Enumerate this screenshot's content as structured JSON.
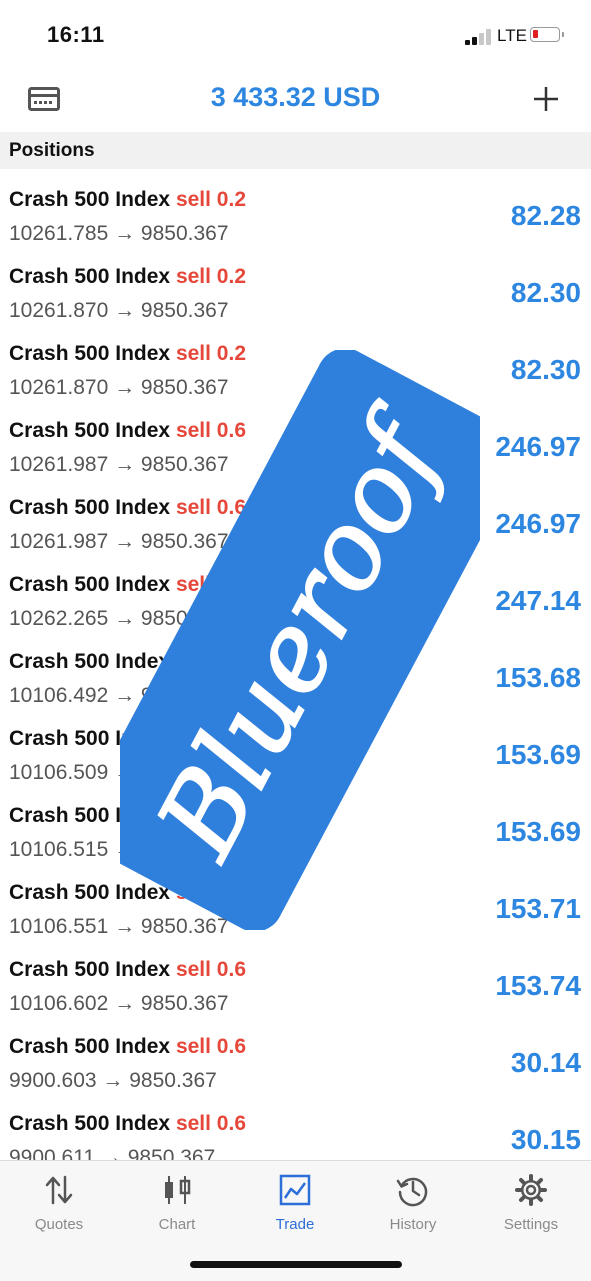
{
  "status_bar": {
    "time": "16:11",
    "network": "LTE"
  },
  "header": {
    "balance": "3 433.32 USD"
  },
  "positions": {
    "title": "Positions",
    "items": [
      {
        "symbol": "Crash 500 Index",
        "side": "sell 0.2",
        "prices": "10261.785 → 9850.367",
        "profit": "82.28"
      },
      {
        "symbol": "Crash 500 Index",
        "side": "sell 0.2",
        "prices": "10261.870 → 9850.367",
        "profit": "82.30"
      },
      {
        "symbol": "Crash 500 Index",
        "side": "sell 0.2",
        "prices": "10261.870 → 9850.367",
        "profit": "82.30"
      },
      {
        "symbol": "Crash 500 Index",
        "side": "sell 0.6",
        "prices": "10261.987 → 9850.367",
        "profit": "246.97"
      },
      {
        "symbol": "Crash 500 Index",
        "side": "sell 0.6",
        "prices": "10261.987 → 9850.367",
        "profit": "246.97"
      },
      {
        "symbol": "Crash 500 Index",
        "side": "sell 0.6",
        "prices": "10262.265 → 9850.367",
        "profit": "247.14"
      },
      {
        "symbol": "Crash 500 Index",
        "side": "sell 0.6",
        "prices": "10106.492 → 9850.367",
        "profit": "153.68"
      },
      {
        "symbol": "Crash 500 Index",
        "side": "sell 0.6",
        "prices": "10106.509 → 9850.367",
        "profit": "153.69"
      },
      {
        "symbol": "Crash 500 Index",
        "side": "sell 0.6",
        "prices": "10106.515 → 9850.367",
        "profit": "153.69"
      },
      {
        "symbol": "Crash 500 Index",
        "side": "sell 0.6",
        "prices": "10106.551 → 9850.367",
        "profit": "153.71"
      },
      {
        "symbol": "Crash 500 Index",
        "side": "sell 0.6",
        "prices": "10106.602 → 9850.367",
        "profit": "153.74"
      },
      {
        "symbol": "Crash 500 Index",
        "side": "sell 0.6",
        "prices": "9900.603 → 9850.367",
        "profit": "30.14"
      },
      {
        "symbol": "Crash 500 Index",
        "side": "sell 0.6",
        "prices": "9900.611 → 9850.367",
        "profit": "30.15"
      }
    ]
  },
  "watermark": {
    "text": "Blueroof"
  },
  "tabs": [
    {
      "label": "Quotes",
      "icon": "quotes-icon"
    },
    {
      "label": "Chart",
      "icon": "chart-icon"
    },
    {
      "label": "Trade",
      "icon": "trade-icon",
      "active": true
    },
    {
      "label": "History",
      "icon": "history-icon"
    },
    {
      "label": "Settings",
      "icon": "settings-icon"
    }
  ],
  "colors": {
    "accent": "#2d86e0",
    "sell": "#e5483a",
    "tab_active": "#2d6fd8",
    "watermark": "#2f7fdc"
  }
}
